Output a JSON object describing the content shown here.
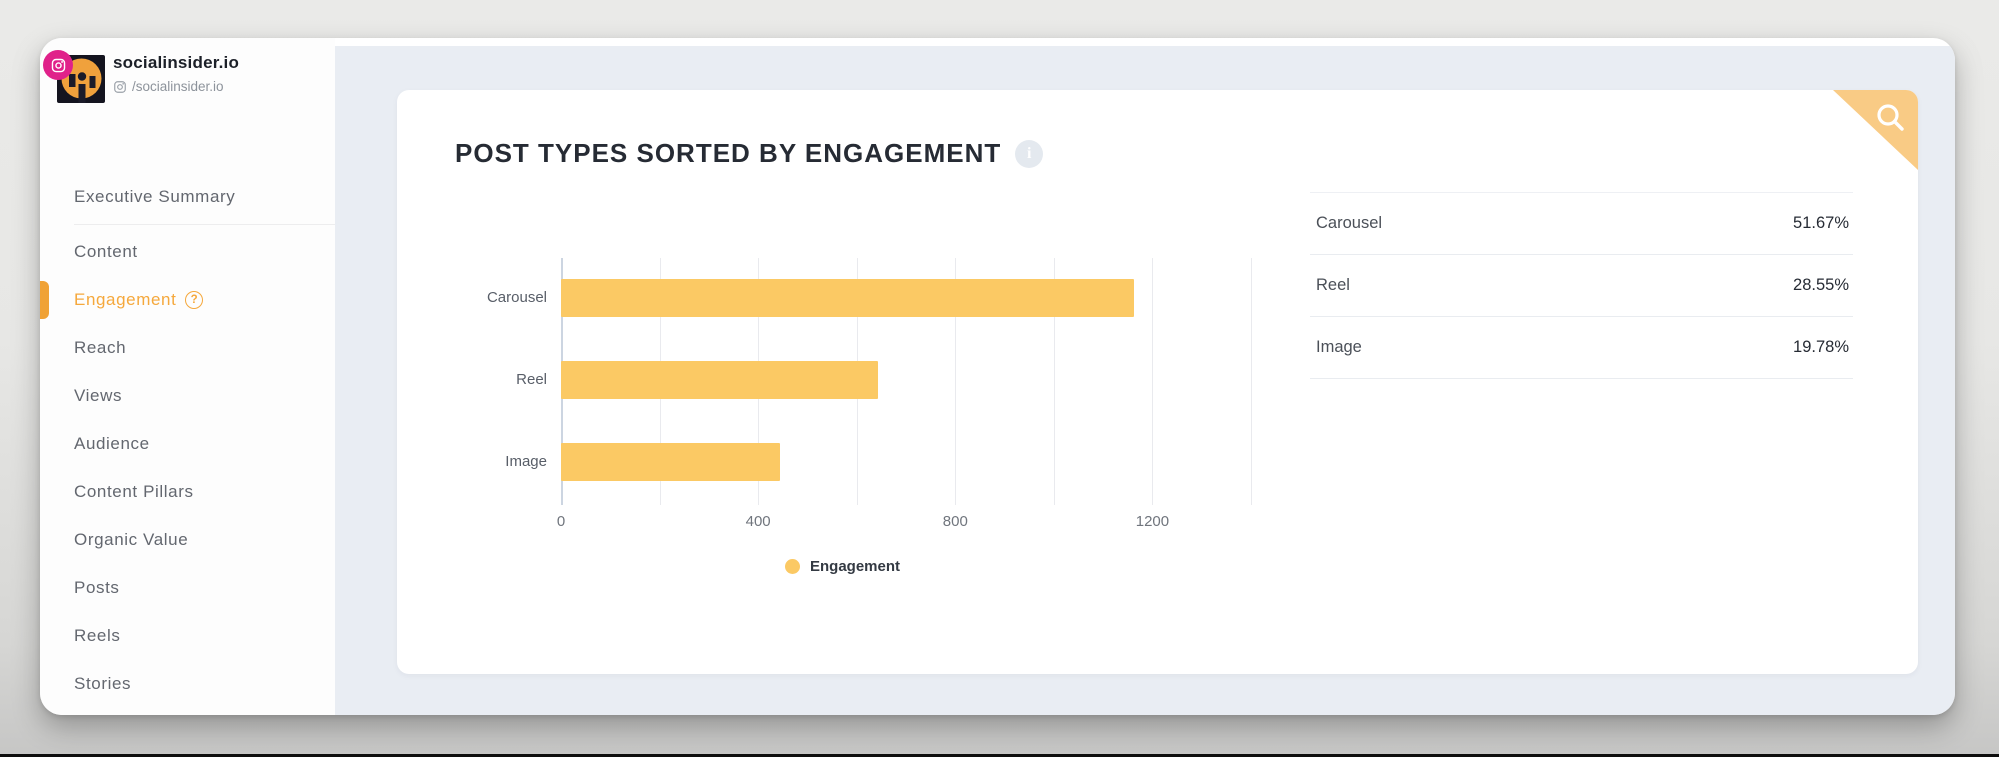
{
  "sidebar": {
    "profile": {
      "name": "socialinsider.io",
      "handle": "/socialinsider.io"
    },
    "items": [
      {
        "label": "Executive Summary"
      },
      {
        "label": "Content",
        "divider_before": true
      },
      {
        "label": "Engagement",
        "active": true,
        "help_glyph": "?"
      },
      {
        "label": "Reach"
      },
      {
        "label": "Views"
      },
      {
        "label": "Audience"
      },
      {
        "label": "Content Pillars"
      },
      {
        "label": "Organic Value"
      },
      {
        "label": "Posts"
      },
      {
        "label": "Reels"
      },
      {
        "label": "Stories"
      }
    ]
  },
  "main": {
    "title": "POST TYPES SORTED BY ENGAGEMENT",
    "info_glyph": "i",
    "breakdown": {
      "rows": [
        {
          "label": "Carousel",
          "value": "51.67%"
        },
        {
          "label": "Reel",
          "value": "28.55%"
        },
        {
          "label": "Image",
          "value": "19.78%"
        }
      ]
    }
  },
  "chart_data": {
    "type": "bar",
    "orientation": "horizontal",
    "title": "POST TYPES SORTED BY ENGAGEMENT",
    "categories": [
      "Carousel",
      "Reel",
      "Image"
    ],
    "values": [
      1163,
      643,
      445
    ],
    "percentages": [
      51.67,
      28.55,
      19.78
    ],
    "series_name": "Engagement",
    "xlim": [
      0,
      1400
    ],
    "x_ticks": [
      0,
      400,
      800,
      1200
    ],
    "gridline_step": 200,
    "grid": true,
    "legend_position": "bottom",
    "bar_color": "#fbc964"
  },
  "colors": {
    "accent_orange": "#f5a83c",
    "bar_orange": "#fbc964",
    "corner_ribbon": "#f9cb85",
    "instagram_pink": "#e0218a",
    "content_bg": "#e9edf3"
  }
}
